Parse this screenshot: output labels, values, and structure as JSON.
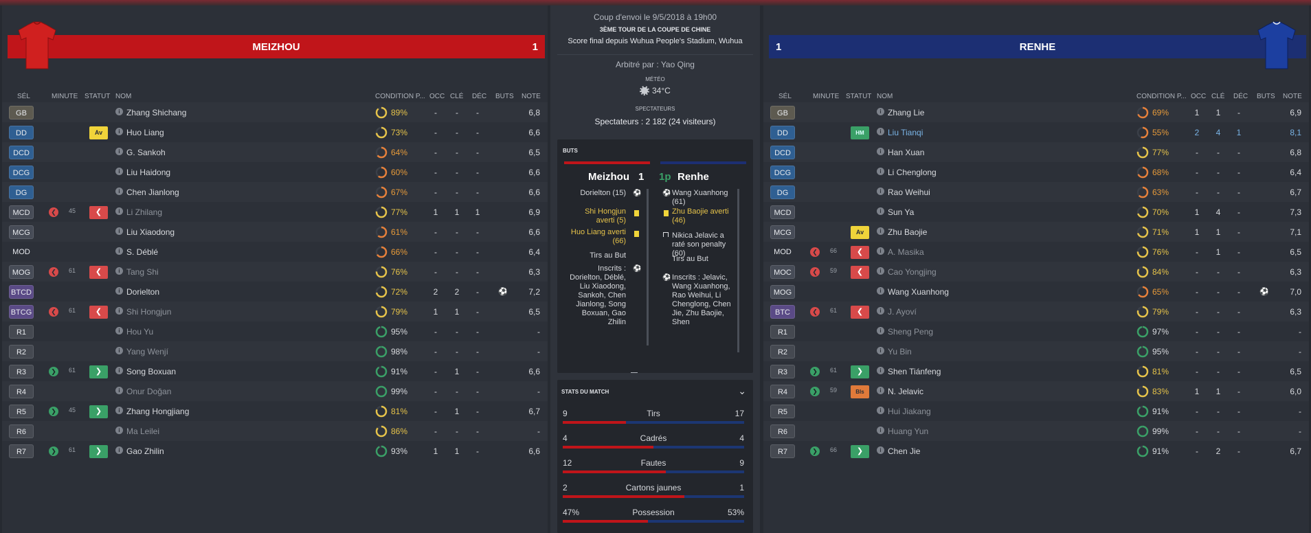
{
  "home": {
    "name": "MEIZHOU",
    "score": "1",
    "color": "#c0151a",
    "columns": [
      "SÉL",
      "MINUTE",
      "STATUT",
      "NOM",
      "CONDITION P...",
      "OCC",
      "CLÉ",
      "DÉC",
      "BUTS",
      "NOTE"
    ],
    "players": [
      {
        "pos": "GB",
        "name": "Zhang Shichang",
        "cond": "89%",
        "condv": 0.89,
        "occ": "-",
        "cle": "-",
        "dec": "-",
        "note": "6,8"
      },
      {
        "pos": "DD",
        "status": "Av",
        "name": "Huo Liang",
        "cond": "73%",
        "condv": 0.73,
        "occ": "-",
        "cle": "-",
        "dec": "-",
        "note": "6,6"
      },
      {
        "pos": "DCD",
        "name": "G. Sankoh",
        "cond": "64%",
        "condv": 0.64,
        "occ": "-",
        "cle": "-",
        "dec": "-",
        "note": "6,5"
      },
      {
        "pos": "DCG",
        "name": "Liu Haidong",
        "cond": "60%",
        "condv": 0.6,
        "occ": "-",
        "cle": "-",
        "dec": "-",
        "note": "6,6"
      },
      {
        "pos": "DG",
        "name": "Chen Jianlong",
        "cond": "67%",
        "condv": 0.67,
        "occ": "-",
        "cle": "-",
        "dec": "-",
        "note": "6,6"
      },
      {
        "pos": "MCD",
        "sub": "out",
        "minute": "45",
        "status": "out",
        "name": "Li Zhilang",
        "cond": "77%",
        "condv": 0.77,
        "occ": "1",
        "cle": "1",
        "dec": "1",
        "note": "6,9"
      },
      {
        "pos": "MCG",
        "name": "Liu Xiaodong",
        "cond": "61%",
        "condv": 0.61,
        "occ": "-",
        "cle": "-",
        "dec": "-",
        "note": "6,6"
      },
      {
        "pos": "MOD",
        "name": "S. Déblé",
        "cond": "66%",
        "condv": 0.66,
        "occ": "-",
        "cle": "-",
        "dec": "-",
        "note": "6,4"
      },
      {
        "pos": "MOG",
        "sub": "out",
        "minute": "61",
        "status": "out",
        "name": "Tang Shi",
        "cond": "76%",
        "condv": 0.76,
        "occ": "-",
        "cle": "-",
        "dec": "-",
        "note": "6,3"
      },
      {
        "pos": "BTCD",
        "name": "Dorielton",
        "cond": "72%",
        "condv": 0.72,
        "occ": "2",
        "cle": "2",
        "dec": "-",
        "goal": true,
        "note": "7,2"
      },
      {
        "pos": "BTCG",
        "sub": "out",
        "minute": "61",
        "status": "out",
        "name": "Shi Hongjun",
        "cond": "79%",
        "condv": 0.79,
        "occ": "1",
        "cle": "1",
        "dec": "-",
        "note": "6,5"
      },
      {
        "pos": "R1",
        "name": "Hou Yu",
        "cond": "95%",
        "condv": 0.95,
        "occ": "-",
        "cle": "-",
        "dec": "-",
        "note": "-"
      },
      {
        "pos": "R2",
        "name": "Yang Wenjí",
        "cond": "98%",
        "condv": 0.98,
        "occ": "-",
        "cle": "-",
        "dec": "-",
        "note": "-"
      },
      {
        "pos": "R3",
        "sub": "in",
        "minute": "61",
        "status": "in",
        "name": "Song Boxuan",
        "cond": "91%",
        "condv": 0.91,
        "occ": "-",
        "cle": "1",
        "dec": "-",
        "note": "6,6"
      },
      {
        "pos": "R4",
        "name": "Onur Doğan",
        "cond": "99%",
        "condv": 0.99,
        "occ": "-",
        "cle": "-",
        "dec": "-",
        "note": "-"
      },
      {
        "pos": "R5",
        "sub": "in",
        "minute": "45",
        "status": "in",
        "name": "Zhang Hongjiang",
        "cond": "81%",
        "condv": 0.81,
        "occ": "-",
        "cle": "1",
        "dec": "-",
        "note": "6,7"
      },
      {
        "pos": "R6",
        "name": "Ma Leilei",
        "cond": "86%",
        "condv": 0.86,
        "occ": "-",
        "cle": "-",
        "dec": "-",
        "note": "-"
      },
      {
        "pos": "R7",
        "sub": "in",
        "minute": "61",
        "status": "in",
        "name": "Gao Zhilin",
        "cond": "93%",
        "condv": 0.93,
        "occ": "1",
        "cle": "1",
        "dec": "-",
        "note": "6,6"
      }
    ]
  },
  "away": {
    "name": "RENHE",
    "score": "1",
    "color": "#1c2f73",
    "columns": [
      "SÉL",
      "MINUTE",
      "STATUT",
      "NOM",
      "CONDITION P...",
      "OCC",
      "CLÉ",
      "DÉC",
      "BUTS",
      "NOTE"
    ],
    "players": [
      {
        "pos": "GB",
        "name": "Zhang Lie",
        "cond": "69%",
        "condv": 0.69,
        "occ": "1",
        "cle": "1",
        "dec": "-",
        "note": "6,9"
      },
      {
        "pos": "DD",
        "status": "HM",
        "name": "Liu Tianqi",
        "hl": true,
        "cond": "55%",
        "condv": 0.55,
        "occ": "2",
        "cle": "4",
        "dec": "1",
        "note": "8,1"
      },
      {
        "pos": "DCD",
        "name": "Han Xuan",
        "cond": "77%",
        "condv": 0.77,
        "occ": "-",
        "cle": "-",
        "dec": "-",
        "note": "6,8"
      },
      {
        "pos": "DCG",
        "name": "Li Chenglong",
        "cond": "68%",
        "condv": 0.68,
        "occ": "-",
        "cle": "-",
        "dec": "-",
        "note": "6,4"
      },
      {
        "pos": "DG",
        "name": "Rao Weihui",
        "cond": "63%",
        "condv": 0.63,
        "occ": "-",
        "cle": "-",
        "dec": "-",
        "note": "6,7"
      },
      {
        "pos": "MCD",
        "name": "Sun Ya",
        "cond": "70%",
        "condv": 0.7,
        "occ": "1",
        "cle": "4",
        "dec": "-",
        "note": "7,3"
      },
      {
        "pos": "MCG",
        "status": "Av",
        "name": "Zhu Baojie",
        "cond": "71%",
        "condv": 0.71,
        "occ": "1",
        "cle": "1",
        "dec": "-",
        "note": "7,1"
      },
      {
        "pos": "MOD",
        "sub": "out",
        "minute": "66",
        "status": "out",
        "name": "A. Masika",
        "cond": "76%",
        "condv": 0.76,
        "occ": "-",
        "cle": "1",
        "dec": "-",
        "note": "6,5"
      },
      {
        "pos": "MOC",
        "sub": "out",
        "minute": "59",
        "status": "out",
        "name": "Cao Yongjing",
        "cond": "84%",
        "condv": 0.84,
        "occ": "-",
        "cle": "-",
        "dec": "-",
        "note": "6,3"
      },
      {
        "pos": "MOG",
        "name": "Wang Xuanhong",
        "cond": "65%",
        "condv": 0.65,
        "occ": "-",
        "cle": "-",
        "dec": "-",
        "goal": true,
        "note": "7,0"
      },
      {
        "pos": "BTC",
        "sub": "out",
        "minute": "61",
        "status": "out",
        "name": "J. Ayoví",
        "cond": "79%",
        "condv": 0.79,
        "occ": "-",
        "cle": "-",
        "dec": "-",
        "note": "6,3"
      },
      {
        "pos": "R1",
        "name": "Sheng Peng",
        "cond": "97%",
        "condv": 0.97,
        "occ": "-",
        "cle": "-",
        "dec": "-",
        "note": "-"
      },
      {
        "pos": "R2",
        "name": "Yu Bin",
        "cond": "95%",
        "condv": 0.95,
        "occ": "-",
        "cle": "-",
        "dec": "-",
        "note": "-"
      },
      {
        "pos": "R3",
        "sub": "in",
        "minute": "61",
        "status": "in",
        "name": "Shen Tiánfeng",
        "cond": "81%",
        "condv": 0.81,
        "occ": "-",
        "cle": "-",
        "dec": "-",
        "note": "6,5"
      },
      {
        "pos": "R4",
        "sub": "in",
        "minute": "59",
        "status": "Bls",
        "name": "N. Jelavic",
        "cond": "83%",
        "condv": 0.83,
        "occ": "1",
        "cle": "1",
        "dec": "-",
        "note": "6,0"
      },
      {
        "pos": "R5",
        "name": "Hui Jiakang",
        "cond": "91%",
        "condv": 0.91,
        "occ": "-",
        "cle": "-",
        "dec": "-",
        "note": "-"
      },
      {
        "pos": "R6",
        "name": "Huang Yun",
        "cond": "99%",
        "condv": 0.99,
        "occ": "-",
        "cle": "-",
        "dec": "-",
        "note": "-"
      },
      {
        "pos": "R7",
        "sub": "in",
        "minute": "66",
        "status": "in",
        "name": "Chen Jie",
        "cond": "91%",
        "condv": 0.91,
        "occ": "-",
        "cle": "2",
        "dec": "-",
        "note": "6,7"
      }
    ]
  },
  "match": {
    "kickoff": "Coup d'envoi le 9/5/2018 à 19h00",
    "competition": "3ÈME TOUR DE LA COUPE DE CHINE",
    "venue": "Score final depuis Wuhua People's Stadium, Wuhua",
    "referee": "Arbitré par : Yao Qing",
    "weather_label": "MÉTÉO",
    "weather": "34°C",
    "spectators_label": "SPECTATEURS",
    "spectators": "Spectateurs : 2 182 (24 visiteurs)"
  },
  "goals": {
    "label": "BUTS",
    "home_team": "Meizhou",
    "home_score": "1",
    "away_pen": "1p",
    "away_team": "Renhe",
    "home_events": [
      {
        "text": "Dorielton (15)",
        "icon": "ball"
      },
      {
        "text": "Shi Hongjun averti (5)",
        "icon": "yellow"
      },
      {
        "text": "Huo Liang averti (66)",
        "icon": "yellow"
      },
      {
        "text": "Tirs au But",
        "icon": ""
      },
      {
        "text": "Inscrits : Dorielton, Déblé, Liu Xiaodong, Sankoh, Chen Jianlong, Song Boxuan, Gao Zhilin",
        "icon": "ball"
      }
    ],
    "away_events": [
      {
        "text": "Wang Xuanhong (61)",
        "icon": "ball"
      },
      {
        "text": "Zhu Baojie averti (46)",
        "icon": "yellow"
      },
      {
        "text": "Nikica Jelavic a raté son penalty (60)",
        "icon": "miss"
      },
      {
        "text": "Tirs au But",
        "icon": ""
      },
      {
        "text": "Inscrits : Jelavic, Wang Xuanhong, Rao Weihui, Li Chenglong, Chen Jie, Zhu Baojie, Shen",
        "icon": "ball"
      }
    ]
  },
  "stats": {
    "label": "STATS DU MATCH",
    "rows": [
      {
        "label": "Tirs",
        "home": "9",
        "away": "17",
        "share": 0.35
      },
      {
        "label": "Cadrés",
        "home": "4",
        "away": "4",
        "share": 0.5
      },
      {
        "label": "Fautes",
        "home": "12",
        "away": "9",
        "share": 0.57
      },
      {
        "label": "Cartons jaunes",
        "home": "2",
        "away": "1",
        "share": 0.67
      },
      {
        "label": "Possession",
        "home": "47%",
        "away": "53%",
        "share": 0.47
      }
    ]
  },
  "colors": {
    "home": "#c0151a",
    "away": "#1c2f73",
    "accent_green": "#3aa067",
    "accent_red": "#d84a4a",
    "card_yellow": "#f0d43a"
  }
}
